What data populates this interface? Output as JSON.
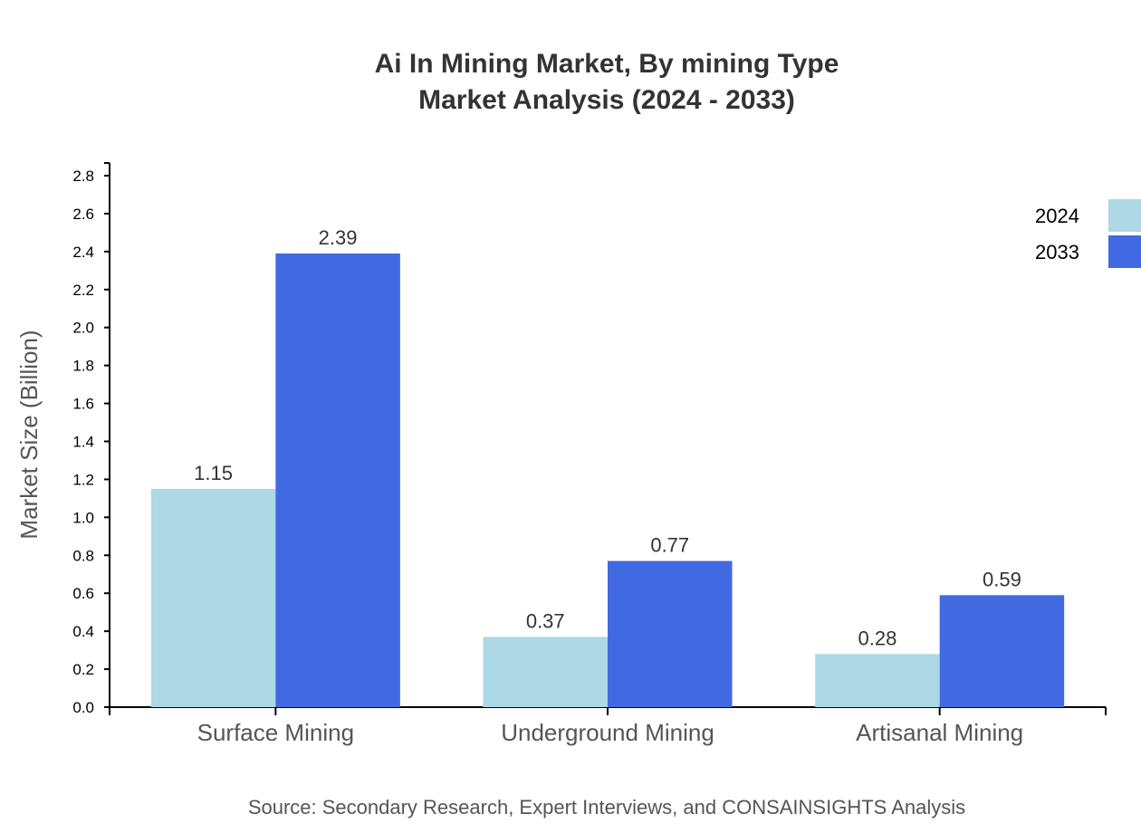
{
  "chart_data": {
    "type": "bar",
    "title": "Ai In Mining Market, By mining Type",
    "subtitle": "Market Analysis (2024 - 2033)",
    "xlabel": "",
    "ylabel": "Market Size (Billion)",
    "ylim": [
      0,
      2.8
    ],
    "yticks": [
      "0.0",
      "0.2",
      "0.4",
      "0.6",
      "0.8",
      "1.0",
      "1.2",
      "1.4",
      "1.6",
      "1.8",
      "2.0",
      "2.2",
      "2.4",
      "2.6",
      "2.8"
    ],
    "categories": [
      "Surface Mining",
      "Underground Mining",
      "Artisanal Mining"
    ],
    "series": [
      {
        "name": "2024",
        "color": "#add8e6",
        "values": [
          1.15,
          0.37,
          0.28
        ]
      },
      {
        "name": "2033",
        "color": "#4169e1",
        "values": [
          2.39,
          0.77,
          0.59
        ]
      }
    ],
    "legend_position": "top-right",
    "grid": false,
    "source": "Source: Secondary Research, Expert Interviews, and CONSAINSIGHTS Analysis"
  }
}
